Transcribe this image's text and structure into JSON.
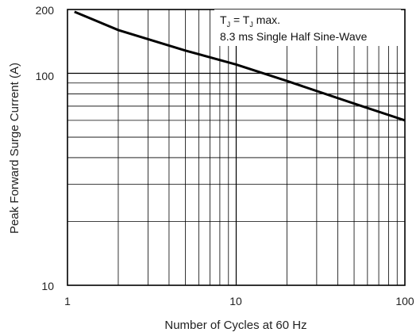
{
  "chart_data": {
    "type": "line",
    "title": "",
    "xlabel": "Number of Cycles at 60 Hz",
    "ylabel": "Peak Forward Surge Current (A)",
    "x_scale": "log",
    "y_scale": "log",
    "xlim": [
      1,
      100
    ],
    "ylim": [
      10,
      200
    ],
    "x_ticks": [
      "1",
      "10",
      "100"
    ],
    "y_ticks": [
      "200",
      "100",
      "10"
    ],
    "grid": true,
    "series": [
      {
        "name": "",
        "x": [
          1.1,
          2,
          5,
          10,
          20,
          50,
          100
        ],
        "y": [
          195,
          160,
          128,
          110,
          92,
          72,
          60
        ]
      }
    ],
    "annotations": {
      "line1": {
        "a": "T",
        "a_sub": "J",
        "eq": " = ",
        "b": "T",
        "b_sub": "J",
        "rest": " max."
      },
      "line2": "8.3 ms Single Half Sine-Wave"
    }
  }
}
